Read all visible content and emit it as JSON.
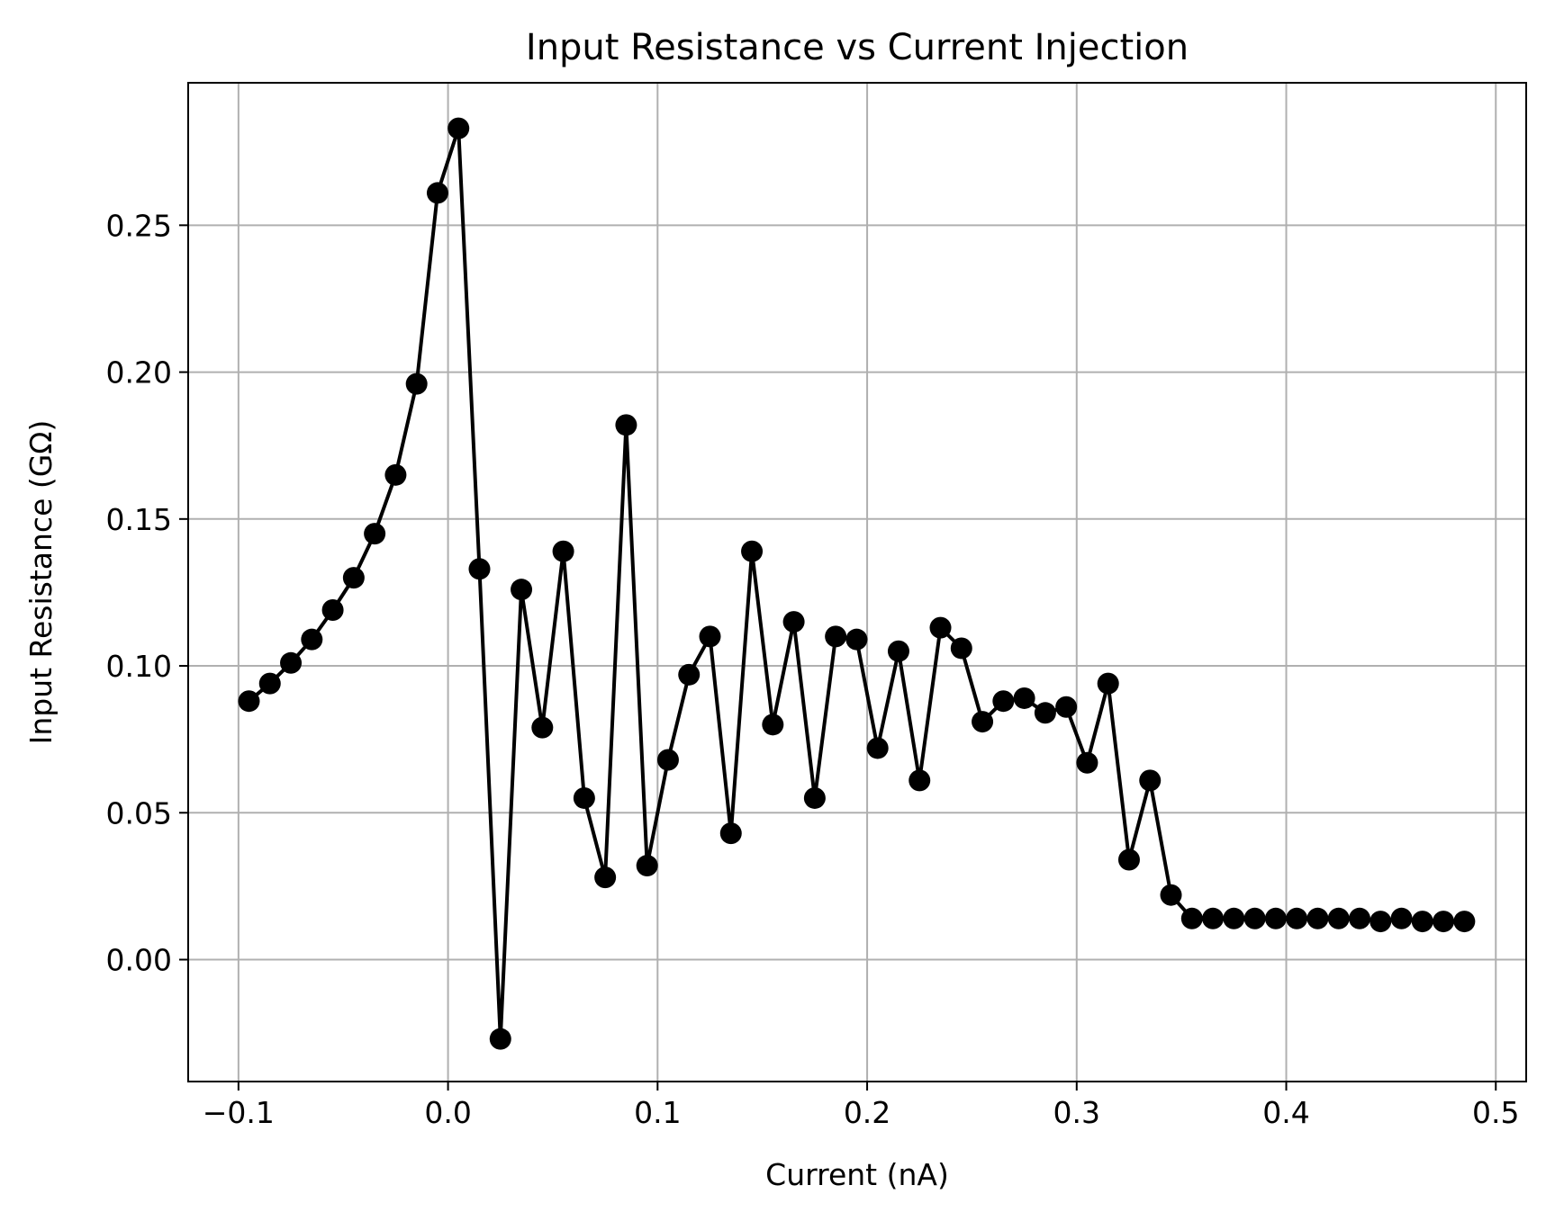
{
  "chart_data": {
    "type": "line",
    "title": "Input Resistance vs Current Injection",
    "xlabel": "Current (nA)",
    "ylabel": "Input Resistance (GΩ)",
    "xlim": [
      -0.124,
      0.5145
    ],
    "ylim": [
      -0.0415,
      0.2985
    ],
    "xticks": [
      -0.1,
      0.0,
      0.1,
      0.2,
      0.3,
      0.4,
      0.5
    ],
    "xtick_labels": [
      "−0.1",
      "0.0",
      "0.1",
      "0.2",
      "0.3",
      "0.4",
      "0.5"
    ],
    "yticks": [
      0.0,
      0.05,
      0.1,
      0.15,
      0.2,
      0.25
    ],
    "ytick_labels": [
      "0.00",
      "0.05",
      "0.10",
      "0.15",
      "0.20",
      "0.25"
    ],
    "grid": true,
    "color": "#000000",
    "marker": "circle",
    "series": [
      {
        "x": [
          -0.095,
          -0.085,
          -0.075,
          -0.065,
          -0.055,
          -0.045,
          -0.035,
          -0.025,
          -0.015,
          -0.005,
          0.005,
          0.015,
          0.025,
          0.035,
          0.045,
          0.055,
          0.065,
          0.075,
          0.085,
          0.095,
          0.105,
          0.115,
          0.125,
          0.135,
          0.145,
          0.155,
          0.165,
          0.175,
          0.185,
          0.195,
          0.205,
          0.215,
          0.225,
          0.235,
          0.245,
          0.255,
          0.265,
          0.275,
          0.285,
          0.295,
          0.305,
          0.315,
          0.325,
          0.335,
          0.345,
          0.355,
          0.365,
          0.375,
          0.385,
          0.395,
          0.405,
          0.415,
          0.425,
          0.435,
          0.445,
          0.455,
          0.465,
          0.475,
          0.485
        ],
        "y": [
          0.088,
          0.094,
          0.101,
          0.109,
          0.119,
          0.13,
          0.145,
          0.165,
          0.196,
          0.261,
          0.283,
          0.133,
          -0.027,
          0.126,
          0.079,
          0.139,
          0.055,
          0.028,
          0.182,
          0.032,
          0.068,
          0.097,
          0.11,
          0.043,
          0.139,
          0.08,
          0.115,
          0.055,
          0.11,
          0.109,
          0.072,
          0.105,
          0.061,
          0.113,
          0.106,
          0.081,
          0.088,
          0.089,
          0.084,
          0.086,
          0.067,
          0.094,
          0.034,
          0.061,
          0.022,
          0.014,
          0.014,
          0.014,
          0.014,
          0.014,
          0.014,
          0.014,
          0.014,
          0.014,
          0.013,
          0.014,
          0.013,
          0.013,
          0.013
        ]
      }
    ]
  }
}
